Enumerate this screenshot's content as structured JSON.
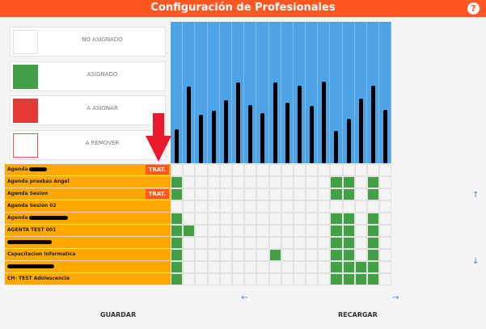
{
  "header": {
    "title": "Configuración de Profesionales",
    "help_icon": "?"
  },
  "legend": [
    {
      "label": "NO ASIGNADO",
      "fill": "#ffffff",
      "border": "#e0e0e0"
    },
    {
      "label": "ASIGNADO",
      "fill": "#43a047",
      "border": "#43a047"
    },
    {
      "label": "A ASIGNAR",
      "fill": "#e53935",
      "border": "#e53935"
    },
    {
      "label": "A REMOVER",
      "fill": "#ffffff",
      "border": "#ef5350"
    }
  ],
  "columns": {
    "count": 18,
    "redaction_heights": [
      42,
      95,
      60,
      65,
      78,
      100,
      72,
      62,
      100,
      75,
      96,
      71,
      101,
      40,
      55,
      80,
      96,
      66
    ]
  },
  "rows": [
    {
      "label": "Agenda",
      "redacted": true,
      "redact_width": 22,
      "trat": "TRAT.",
      "cells": []
    },
    {
      "label": "Agenda pruebas Angel",
      "redacted": false,
      "trat": null,
      "cells": [
        1,
        14,
        15,
        17
      ]
    },
    {
      "label": "Agenda Sesion",
      "redacted": false,
      "trat": "TRAT.",
      "cells": [
        1,
        14,
        15,
        17
      ]
    },
    {
      "label": "Agenda Sesión 02",
      "redacted": false,
      "trat": null,
      "cells": []
    },
    {
      "label": "Agenda",
      "redacted": true,
      "redact_width": 48,
      "trat": null,
      "cells": [
        1,
        14,
        15,
        17
      ]
    },
    {
      "label": "AGENTA TEST 001",
      "redacted": false,
      "trat": null,
      "cells": [
        1,
        2,
        14,
        15,
        17
      ]
    },
    {
      "label": "",
      "redacted": true,
      "redact_width": 55,
      "trat": null,
      "cells": [
        1,
        14,
        15,
        17
      ]
    },
    {
      "label": "Capacitacion Informatica",
      "redacted": false,
      "trat": null,
      "cells": [
        1,
        9,
        14,
        15,
        17
      ]
    },
    {
      "label": "",
      "redacted": true,
      "redact_width": 58,
      "trat": null,
      "cells": [
        1,
        14,
        15,
        16,
        17
      ]
    },
    {
      "label": "CH- TEST Adolescencia",
      "redacted": false,
      "trat": null,
      "cells": [
        1,
        14,
        15,
        16,
        17
      ]
    }
  ],
  "navigation": {
    "up": "↑",
    "down": "↓",
    "left": "←",
    "right": "→"
  },
  "buttons": {
    "save": "GUARDAR",
    "reload": "RECARGAR"
  },
  "colors": {
    "brand": "#ff5722",
    "header_cols": "#4da3e6",
    "row_label": "#ffa800",
    "assigned": "#43a047",
    "annotation_arrow": "#e8192c"
  }
}
